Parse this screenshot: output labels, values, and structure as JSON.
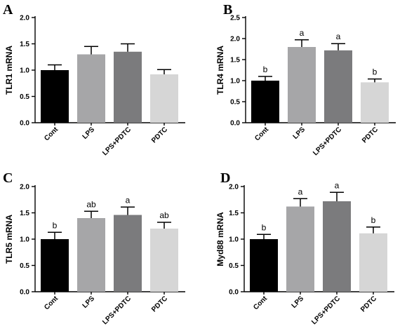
{
  "palette": [
    "#000000",
    "#a6a6a8",
    "#7b7b7d",
    "#d6d6d6"
  ],
  "chart_data": [
    {
      "type": "bar",
      "panel": "A",
      "ylabel": "TLR1 mRNA",
      "categories": [
        "Cont",
        "LPS",
        "LPS+PDTC",
        "PDTC"
      ],
      "values": [
        1.0,
        1.3,
        1.35,
        0.92
      ],
      "errors": [
        0.1,
        0.15,
        0.15,
        0.09
      ],
      "sig_labels": [
        "",
        "",
        "",
        ""
      ],
      "ylim": [
        0,
        2.0
      ],
      "yticks": [
        "0.0",
        "0.5",
        "1.0",
        "1.5",
        "2.0"
      ]
    },
    {
      "type": "bar",
      "panel": "B",
      "ylabel": "TLR4 mRNA",
      "categories": [
        "Cont",
        "LPS",
        "LPS+PDTC",
        "PDTC"
      ],
      "values": [
        1.0,
        1.8,
        1.72,
        0.96
      ],
      "errors": [
        0.1,
        0.17,
        0.16,
        0.08
      ],
      "sig_labels": [
        "b",
        "a",
        "a",
        "b"
      ],
      "ylim": [
        0,
        2.5
      ],
      "yticks": [
        "0.0",
        "0.5",
        "1.0",
        "1.5",
        "2.0",
        "2.5"
      ]
    },
    {
      "type": "bar",
      "panel": "C",
      "ylabel": "TLR5 mRNA",
      "categories": [
        "Cont",
        "LPS",
        "LPS+PDTC",
        "PDTC"
      ],
      "values": [
        1.0,
        1.4,
        1.46,
        1.2
      ],
      "errors": [
        0.13,
        0.13,
        0.15,
        0.12
      ],
      "sig_labels": [
        "b",
        "ab",
        "a",
        "ab"
      ],
      "ylim": [
        0,
        2.0
      ],
      "yticks": [
        "0.0",
        "0.5",
        "1.0",
        "1.5",
        "2.0"
      ]
    },
    {
      "type": "bar",
      "panel": "D",
      "ylabel": "Myd88 mRNA",
      "categories": [
        "Cont",
        "LPS",
        "LPS+PDTC",
        "PDTC"
      ],
      "values": [
        1.0,
        1.62,
        1.72,
        1.11
      ],
      "errors": [
        0.09,
        0.15,
        0.17,
        0.12
      ],
      "sig_labels": [
        "b",
        "a",
        "a",
        "b"
      ],
      "ylim": [
        0,
        2.0
      ],
      "yticks": [
        "0.0",
        "0.5",
        "1.0",
        "1.5",
        "2.0"
      ]
    }
  ]
}
